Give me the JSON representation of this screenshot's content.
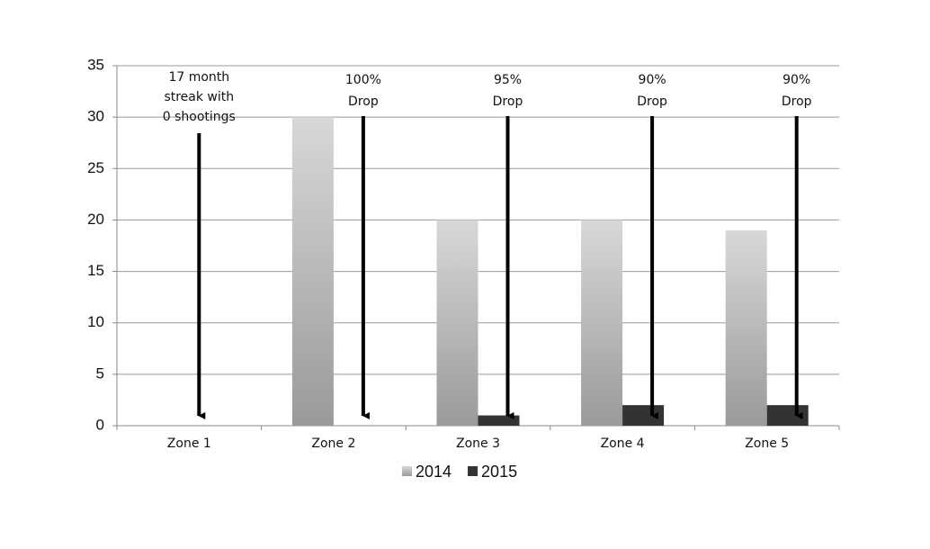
{
  "chart_data": {
    "type": "bar",
    "categories": [
      "Zone 1",
      "Zone 2",
      "Zone 3",
      "Zone 4",
      "Zone 5"
    ],
    "series": [
      {
        "name": "2014",
        "color": "#d8d8d8",
        "values": [
          0,
          30,
          20,
          20,
          19
        ]
      },
      {
        "name": "2015",
        "color": "#333333",
        "values": [
          0,
          0,
          1,
          2,
          2
        ]
      }
    ],
    "ylim": [
      0,
      35
    ],
    "yticks": [
      0,
      5,
      10,
      15,
      20,
      25,
      30,
      35
    ],
    "grid": true,
    "legend": "bottom",
    "annotations": [
      {
        "lines": [
          "17 month",
          "streak with",
          "0 shootings"
        ]
      },
      {
        "lines": [
          "100%",
          "Drop"
        ]
      },
      {
        "lines": [
          "95%",
          "Drop"
        ]
      },
      {
        "lines": [
          "90%",
          "Drop"
        ]
      },
      {
        "lines": [
          "90%",
          "Drop"
        ]
      }
    ]
  }
}
